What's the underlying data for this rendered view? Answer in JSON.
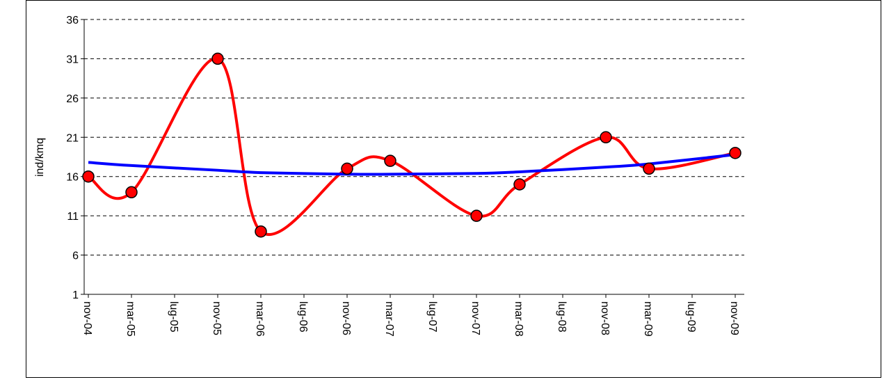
{
  "chart_data": {
    "type": "line",
    "y_label": "ind/kmq",
    "x": [
      "2004-11",
      "2005-03",
      "2005-11",
      "2006-03",
      "2006-11",
      "2007-03",
      "2007-11",
      "2008-03",
      "2008-11",
      "2009-03",
      "2009-11"
    ],
    "series": [
      {
        "color": "#ff0000",
        "marker": true,
        "values": [
          16,
          14,
          31,
          9,
          17,
          18,
          11,
          15,
          21,
          17,
          19
        ]
      },
      {
        "color": "#0000ff",
        "marker": false,
        "values": [
          17.8,
          17.4,
          16.8,
          16.5,
          16.3,
          16.3,
          16.4,
          16.6,
          17.2,
          17.6,
          18.8
        ]
      }
    ],
    "xlim": [
      "2004-11",
      "2009-11"
    ],
    "xticks": [
      {
        "value": "2004-11",
        "label": "nov-04"
      },
      {
        "value": "2005-03",
        "label": "mar-05"
      },
      {
        "value": "2005-07",
        "label": "lug-05"
      },
      {
        "value": "2005-11",
        "label": "nov-05"
      },
      {
        "value": "2006-03",
        "label": "mar-06"
      },
      {
        "value": "2006-07",
        "label": "lug-06"
      },
      {
        "value": "2006-11",
        "label": "nov-06"
      },
      {
        "value": "2007-03",
        "label": "mar-07"
      },
      {
        "value": "2007-07",
        "label": "lug-07"
      },
      {
        "value": "2007-11",
        "label": "nov-07"
      },
      {
        "value": "2008-03",
        "label": "mar-08"
      },
      {
        "value": "2008-07",
        "label": "lug-08"
      },
      {
        "value": "2008-11",
        "label": "nov-08"
      },
      {
        "value": "2009-03",
        "label": "mar-09"
      },
      {
        "value": "2009-07",
        "label": "lug-09"
      },
      {
        "value": "2009-11",
        "label": "nov-09"
      }
    ],
    "ylim": [
      1,
      36
    ],
    "yticks": [
      1,
      6,
      11,
      16,
      21,
      26,
      31,
      36
    ],
    "grid": true
  }
}
